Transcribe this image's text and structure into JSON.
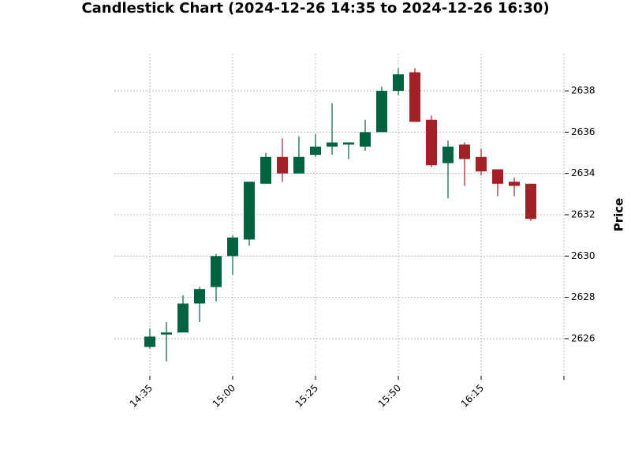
{
  "chart_data": {
    "type": "candlestick",
    "title": "Candlestick Chart (2024-12-26 14:35 to 2024-12-26 16:30)",
    "ylabel": "Price",
    "xlabel": "",
    "ylim": [
      2624.2,
      2639.8
    ],
    "y_ticks": [
      2626,
      2628,
      2630,
      2632,
      2634,
      2636,
      2638
    ],
    "x_ticks": [
      {
        "index": 0,
        "label": "14:35"
      },
      {
        "index": 5,
        "label": "15:00"
      },
      {
        "index": 10,
        "label": "15:25"
      },
      {
        "index": 15,
        "label": "15:50"
      },
      {
        "index": 20,
        "label": "16:15"
      },
      {
        "index": 25,
        "label": ""
      }
    ],
    "grid": true,
    "up_color": "#006340",
    "down_color": "#A02128",
    "candles": [
      {
        "time": "14:35",
        "open": 2625.6,
        "high": 2626.5,
        "low": 2625.5,
        "close": 2626.1
      },
      {
        "time": "14:40",
        "open": 2626.2,
        "high": 2626.8,
        "low": 2624.9,
        "close": 2626.3
      },
      {
        "time": "14:45",
        "open": 2626.3,
        "high": 2628.1,
        "low": 2626.3,
        "close": 2627.7
      },
      {
        "time": "14:50",
        "open": 2627.7,
        "high": 2628.5,
        "low": 2626.8,
        "close": 2628.4
      },
      {
        "time": "14:55",
        "open": 2628.5,
        "high": 2630.1,
        "low": 2627.8,
        "close": 2630.0
      },
      {
        "time": "15:00",
        "open": 2630.0,
        "high": 2631.0,
        "low": 2629.1,
        "close": 2630.9
      },
      {
        "time": "15:05",
        "open": 2630.8,
        "high": 2633.6,
        "low": 2630.5,
        "close": 2633.6
      },
      {
        "time": "15:10",
        "open": 2633.5,
        "high": 2635.0,
        "low": 2633.5,
        "close": 2634.8
      },
      {
        "time": "15:15",
        "open": 2634.8,
        "high": 2635.7,
        "low": 2633.6,
        "close": 2634.0
      },
      {
        "time": "15:20",
        "open": 2634.0,
        "high": 2635.8,
        "low": 2634.0,
        "close": 2634.8
      },
      {
        "time": "15:25",
        "open": 2634.9,
        "high": 2635.9,
        "low": 2634.8,
        "close": 2635.3
      },
      {
        "time": "15:30",
        "open": 2635.3,
        "high": 2637.4,
        "low": 2634.9,
        "close": 2635.5
      },
      {
        "time": "15:35",
        "open": 2635.4,
        "high": 2635.5,
        "low": 2634.7,
        "close": 2635.5
      },
      {
        "time": "15:40",
        "open": 2635.3,
        "high": 2636.6,
        "low": 2635.1,
        "close": 2636.0
      },
      {
        "time": "15:45",
        "open": 2636.0,
        "high": 2638.2,
        "low": 2636.0,
        "close": 2638.0
      },
      {
        "time": "15:50",
        "open": 2638.0,
        "high": 2639.1,
        "low": 2637.8,
        "close": 2638.8
      },
      {
        "time": "15:55",
        "open": 2638.9,
        "high": 2639.1,
        "low": 2636.5,
        "close": 2636.5
      },
      {
        "time": "16:00",
        "open": 2636.6,
        "high": 2636.8,
        "low": 2634.3,
        "close": 2634.4
      },
      {
        "time": "16:05",
        "open": 2634.5,
        "high": 2635.6,
        "low": 2632.8,
        "close": 2635.3
      },
      {
        "time": "16:10",
        "open": 2635.4,
        "high": 2635.5,
        "low": 2633.4,
        "close": 2634.7
      },
      {
        "time": "16:15",
        "open": 2634.8,
        "high": 2635.2,
        "low": 2633.9,
        "close": 2634.1
      },
      {
        "time": "16:20",
        "open": 2634.2,
        "high": 2634.2,
        "low": 2632.9,
        "close": 2633.5
      },
      {
        "time": "16:25",
        "open": 2633.6,
        "high": 2633.8,
        "low": 2632.9,
        "close": 2633.4
      },
      {
        "time": "16:30",
        "open": 2633.5,
        "high": 2633.5,
        "low": 2631.7,
        "close": 2631.8
      }
    ]
  }
}
